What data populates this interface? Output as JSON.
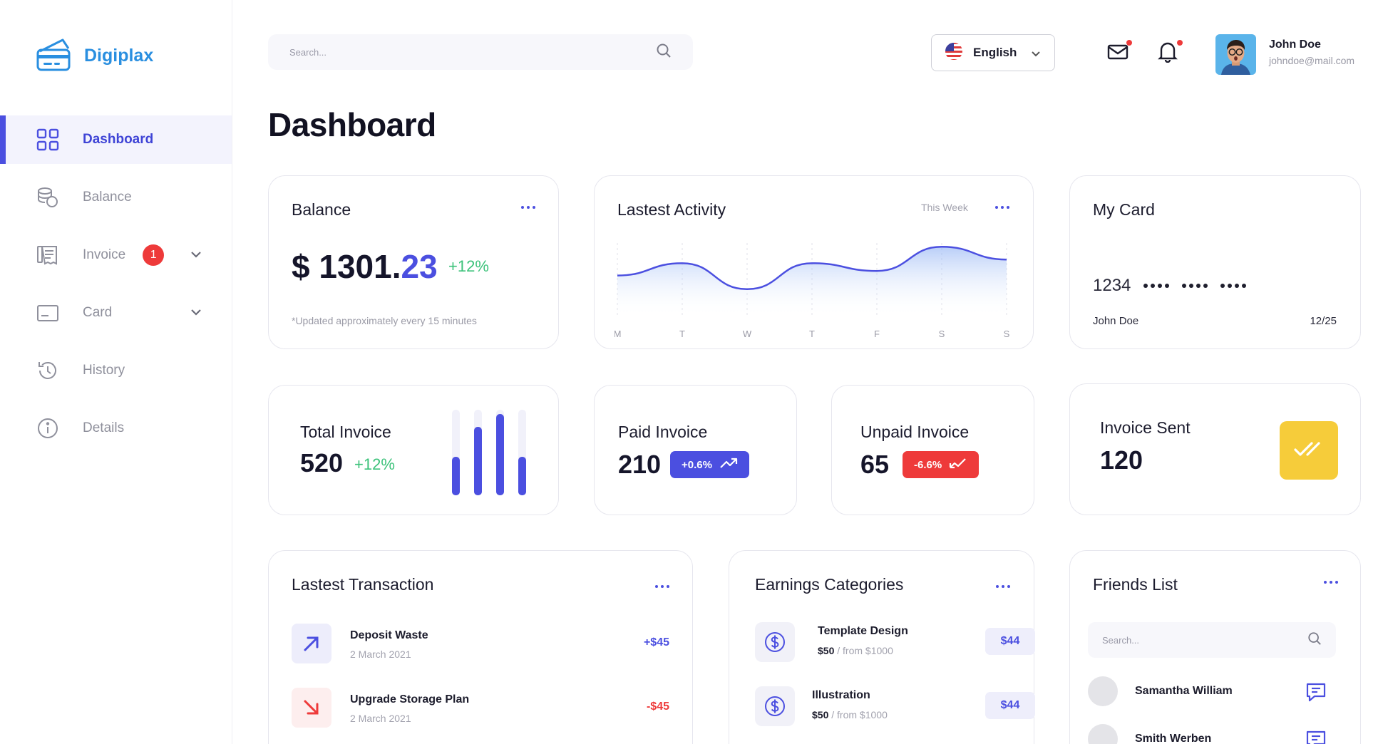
{
  "brand": {
    "name": "Digiplax"
  },
  "sidebar": {
    "items": [
      {
        "label": "Dashboard",
        "icon": "grid-icon",
        "active": true
      },
      {
        "label": "Balance",
        "icon": "coins-icon"
      },
      {
        "label": "Invoice",
        "icon": "invoice-icon",
        "badge": "1",
        "expandable": true
      },
      {
        "label": "Card",
        "icon": "credit-card-icon",
        "expandable": true
      },
      {
        "label": "History",
        "icon": "history-icon"
      },
      {
        "label": "Details",
        "icon": "info-icon"
      }
    ]
  },
  "header": {
    "search_placeholder": "Search...",
    "language": "English",
    "user": {
      "name": "John Doe",
      "email": "johndoe@mail.com"
    }
  },
  "page": {
    "title": "Dashboard"
  },
  "balance": {
    "title": "Balance",
    "amount_main": "$ 1301.",
    "amount_cents": "23",
    "change": "+12%",
    "note": "*Updated approximately every 15 minutes"
  },
  "activity": {
    "title": "Lastest Activity",
    "period": "This Week",
    "days": [
      "M",
      "T",
      "W",
      "T",
      "F",
      "S",
      "S"
    ]
  },
  "chart_data": {
    "type": "area",
    "categories": [
      "M",
      "T",
      "W",
      "T",
      "F",
      "S",
      "S"
    ],
    "values": [
      0.35,
      0.62,
      0.05,
      0.62,
      0.45,
      0.98,
      0.7
    ],
    "ylim": [
      0,
      1
    ],
    "grid": true
  },
  "my_card": {
    "title": "My Card",
    "number_prefix": "1234",
    "holder": "John Doe",
    "expiry": "12/25"
  },
  "total_invoice": {
    "label": "Total Invoice",
    "value": "520",
    "change": "+12%",
    "bars": [
      0.45,
      0.8,
      0.95,
      0.45
    ]
  },
  "paid_invoice": {
    "label": "Paid Invoice",
    "value": "210",
    "change": "+0.6%"
  },
  "unpaid_invoice": {
    "label": "Unpaid Invoice",
    "value": "65",
    "change": "-6.6%"
  },
  "invoice_sent": {
    "label": "Invoice Sent",
    "value": "120"
  },
  "transactions": {
    "title": "Lastest Transaction",
    "items": [
      {
        "title": "Deposit Waste",
        "date": "2 March 2021",
        "amount": "+$45",
        "direction": "up"
      },
      {
        "title": "Upgrade Storage Plan",
        "date": "2 March 2021",
        "amount": "-$45",
        "direction": "down"
      }
    ]
  },
  "earnings": {
    "title": "Earnings Categories",
    "items": [
      {
        "title": "Template Design",
        "price": "$50",
        "from": " / from $1000",
        "amount": "$44"
      },
      {
        "title": "Illustration",
        "price": "$50",
        "from": " / from $1000",
        "amount": "$44"
      }
    ]
  },
  "friends": {
    "title": "Friends List",
    "search_placeholder": "Search...",
    "items": [
      {
        "name": "Samantha William"
      },
      {
        "name": "Smith Werben"
      }
    ]
  },
  "colors": {
    "accent": "#4b4fe0",
    "positive": "#3cc27a",
    "negative": "#ee3a3a",
    "brand": "#2a8fe0",
    "highlight": "#f6cc3a"
  }
}
